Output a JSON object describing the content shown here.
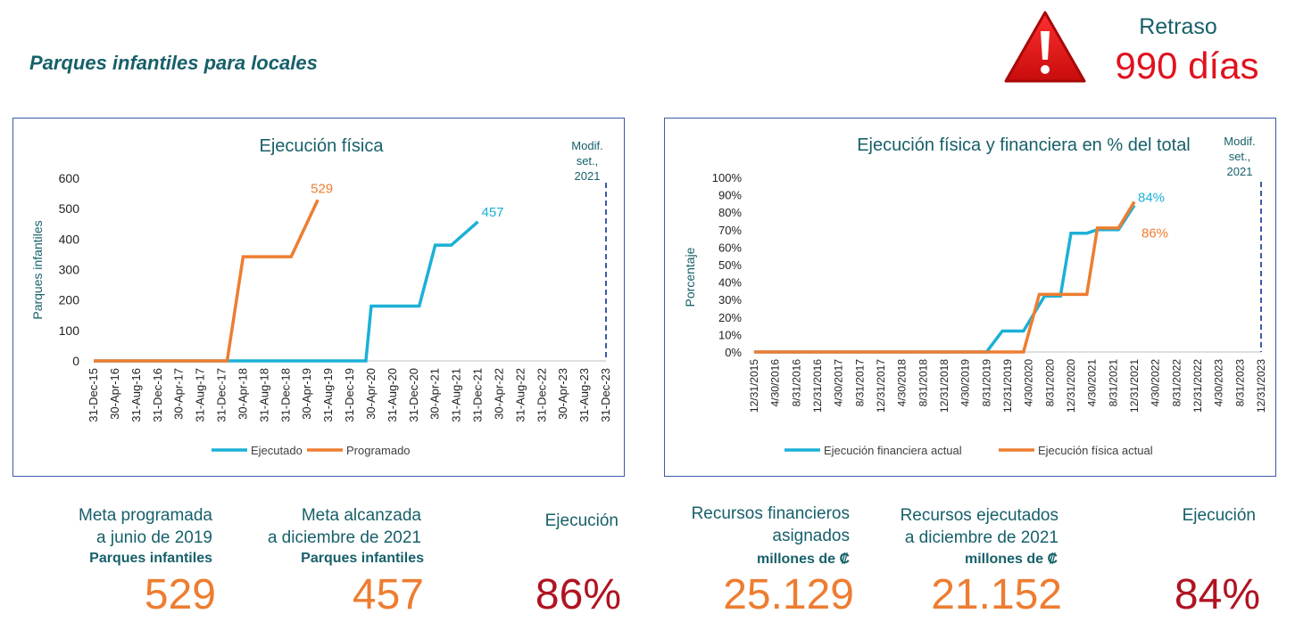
{
  "header": {
    "title": "Parques infantiles para locales",
    "delay_label": "Retraso",
    "delay_value": "990 días"
  },
  "colors": {
    "ejecutado": "#1bb0d6",
    "programado": "#ed7d31",
    "alert": "#e0121f",
    "teal": "#17606a",
    "pct": "#b01322"
  },
  "chart_data": [
    {
      "type": "line",
      "title": "Ejecución física",
      "title_bold": "Ejecución",
      "title_rest": "física",
      "ylabel": "Parques infantiles",
      "ylim": [
        0,
        600
      ],
      "yticks": [
        "0",
        "100",
        "200",
        "300",
        "400",
        "500",
        "600"
      ],
      "xticks": [
        "31-Dec-15",
        "30-Apr-16",
        "31-Aug-16",
        "31-Dec-16",
        "30-Apr-17",
        "31-Aug-17",
        "31-Dec-17",
        "30-Apr-18",
        "31-Aug-18",
        "31-Dec-18",
        "30-Apr-19",
        "31-Aug-19",
        "31-Dec-19",
        "30-Apr-20",
        "31-Aug-20",
        "31-Dec-20",
        "30-Apr-21",
        "31-Aug-21",
        "31-Dec-21",
        "30-Apr-22",
        "31-Aug-22",
        "31-Dec-22",
        "30-Apr-23",
        "31-Aug-23",
        "31-Dec-23"
      ],
      "marker_label": "Modif. set., 2021",
      "marker_lines": [
        "Modif.",
        "set.,",
        "2021"
      ],
      "legend": [
        "Ejecutado",
        "Programado"
      ],
      "series": [
        {
          "name": "Ejecutado",
          "points": [
            [
              "31-Dec-15",
              0
            ],
            [
              "31-Mar-20",
              0
            ],
            [
              "30-Apr-20",
              180
            ],
            [
              "31-Aug-20",
              180
            ],
            [
              "31-Dec-20",
              180
            ],
            [
              "31-Jan-21",
              180
            ],
            [
              "30-Apr-21",
              380
            ],
            [
              "31-Jul-21",
              380
            ],
            [
              "31-Dec-21",
              457
            ]
          ],
          "end_label": "457"
        },
        {
          "name": "Programado",
          "points": [
            [
              "31-Dec-15",
              0
            ],
            [
              "31-Jan-18",
              0
            ],
            [
              "30-Apr-18",
              342
            ],
            [
              "31-Aug-18",
              342
            ],
            [
              "31-Dec-18",
              342
            ],
            [
              "31-Jan-19",
              342
            ],
            [
              "30-Jun-19",
              529
            ]
          ],
          "end_label": "529"
        }
      ]
    },
    {
      "type": "line",
      "title": "Ejecución física y financiera en % del total",
      "title_bold": "Ejecución física y financiera",
      "title_rest": "en % del total",
      "ylabel": "Porcentaje",
      "ylim": [
        0,
        100
      ],
      "yticks": [
        "0%",
        "10%",
        "20%",
        "30%",
        "40%",
        "50%",
        "60%",
        "70%",
        "80%",
        "90%",
        "100%"
      ],
      "xticks": [
        "12/31/2015",
        "4/30/2016",
        "8/31/2016",
        "12/31/2016",
        "4/30/2017",
        "8/31/2017",
        "12/31/2017",
        "4/30/2018",
        "8/31/2018",
        "12/31/2018",
        "4/30/2019",
        "8/31/2019",
        "12/31/2019",
        "4/30/2020",
        "8/31/2020",
        "12/31/2020",
        "4/30/2021",
        "8/31/2021",
        "12/31/2021",
        "4/30/2022",
        "8/31/2022",
        "12/31/2022",
        "4/30/2023",
        "8/31/2023",
        "12/31/2023"
      ],
      "marker_label": "Modif. set., 2021",
      "marker_lines": [
        "Modif.",
        "set.,",
        "2021"
      ],
      "legend": [
        "Ejecución financiera actual",
        "Ejecución física actual"
      ],
      "series": [
        {
          "name": "Ejecución financiera actual",
          "points": [
            [
              "12/31/2015",
              0
            ],
            [
              "8/31/2019",
              0
            ],
            [
              "11/30/2019",
              12
            ],
            [
              "3/31/2020",
              12
            ],
            [
              "7/31/2020",
              32
            ],
            [
              "10/31/2020",
              32
            ],
            [
              "12/31/2020",
              68
            ],
            [
              "3/31/2021",
              68
            ],
            [
              "5/31/2021",
              70
            ],
            [
              "9/30/2021",
              70
            ],
            [
              "12/31/2021",
              84
            ]
          ],
          "end_label": "84%"
        },
        {
          "name": "Ejecución física actual",
          "points": [
            [
              "12/31/2015",
              0
            ],
            [
              "3/31/2020",
              0
            ],
            [
              "6/30/2020",
              33
            ],
            [
              "9/30/2020",
              33
            ],
            [
              "12/31/2020",
              33
            ],
            [
              "3/31/2021",
              33
            ],
            [
              "5/31/2021",
              71
            ],
            [
              "9/30/2021",
              71
            ],
            [
              "12/31/2021",
              86
            ]
          ],
          "end_label": "86%"
        }
      ]
    }
  ],
  "metrics": {
    "m1_label": "Meta programada a junio de 2019",
    "m1_line1": "Meta programada",
    "m1_line2": "a junio de 2019",
    "m1_sub": "Parques infantiles",
    "m1_value": "529",
    "m2_line1": "Meta alcanzada",
    "m2_line2": "a diciembre de 2021",
    "m2_sub": "Parques infantiles",
    "m2_value": "457",
    "m3_label": "Ejecución",
    "m3_value": "86%",
    "m4_line1": "Recursos financieros",
    "m4_line2": "asignados",
    "m4_sub": "millones de ₡",
    "m4_value": "25.129",
    "m5_line1": "Recursos ejecutados",
    "m5_line2": "a diciembre de 2021",
    "m5_sub": "millones de ₡",
    "m5_value": "21.152",
    "m6_label": "Ejecución",
    "m6_value": "84%"
  }
}
